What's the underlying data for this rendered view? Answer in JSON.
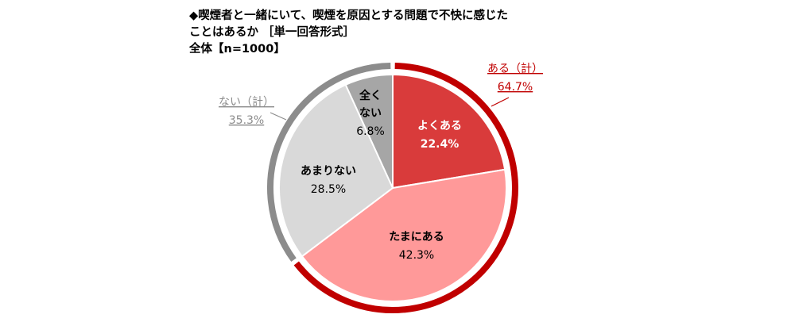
{
  "header": {
    "title_line1": "◆喫煙者と一緒にいて、喫煙を原因とする問題で不快に感じた",
    "title_line2": "ことはあるか ［単一回答形式］",
    "title_line3": "全体【n=1000】"
  },
  "chart_data": {
    "type": "pie",
    "categories": [
      "よくある",
      "たまにある",
      "あまりない",
      "全くない"
    ],
    "values": [
      22.4,
      42.3,
      28.5,
      6.8
    ],
    "value_labels": [
      "22.4%",
      "42.3%",
      "28.5%",
      "6.8%"
    ],
    "colors": [
      "#d93b3b",
      "#ff9999",
      "#d9d9d9",
      "#a6a6a6"
    ],
    "groups": [
      {
        "name": "ある（計）",
        "value": 64.7,
        "value_label": "64.7%",
        "color": "#c00000"
      },
      {
        "name": "ない（計）",
        "value": 35.3,
        "value_label": "35.3%",
        "color": "#8c8c8c"
      }
    ]
  }
}
